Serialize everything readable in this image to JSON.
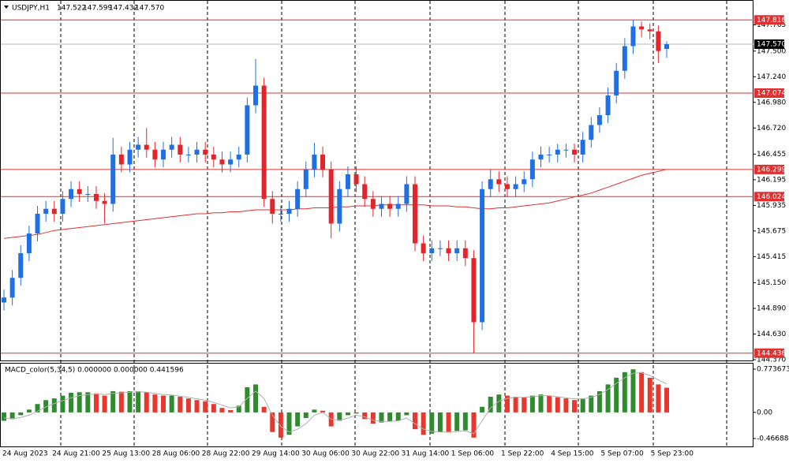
{
  "chart_data": {
    "type": "candlestick",
    "title": "USDJPY,H1",
    "header_values": [
      "147.522",
      "147.599",
      "147.432",
      "147.570"
    ],
    "up_color": "#1f6fe5",
    "down_color": "#e3242b",
    "ma_color": "#e0302f",
    "level_color": "#e0302f",
    "ylim": [
      144.37,
      148.002
    ],
    "yticks": [
      147.765,
      {
        "value": 147.5,
        "label": "147.500"
      },
      {
        "value": 147.24,
        "label": "147.240"
      },
      {
        "value": 146.98,
        "label": "146.980"
      },
      {
        "value": 146.72,
        "label": "146.720"
      },
      146.455,
      146.195,
      145.935,
      145.675,
      145.415,
      {
        "value": 145.15,
        "label": "145.150"
      },
      {
        "value": 144.89,
        "label": "144.890"
      },
      {
        "value": 144.63,
        "label": "144.630"
      },
      {
        "value": 144.37,
        "label": "144.370"
      }
    ],
    "levels": [
      147.816,
      147.074,
      146.299,
      146.024,
      144.436
    ],
    "current": {
      "value": 147.57,
      "label": "147.570"
    },
    "x_labels": [
      "24 Aug 2023",
      "24 Aug 21:00",
      "25 Aug 13:00",
      "28 Aug 06:00",
      "28 Aug 22:00",
      "29 Aug 14:00",
      "30 Aug 06:00",
      "30 Aug 22:00",
      "31 Aug 14:00",
      "1 Sep 06:00",
      "1 Sep 22:00",
      "4 Sep 15:00",
      "5 Sep 07:00",
      "5 Sep 23:00"
    ],
    "open": [
      144.95,
      145.0,
      145.2,
      145.45,
      145.65,
      145.85,
      145.9,
      145.85,
      146.0,
      146.1,
      146.05,
      146.05,
      145.98,
      145.95,
      146.45,
      146.35,
      146.5,
      146.55,
      146.5,
      146.4,
      146.5,
      146.55,
      146.45,
      146.45,
      146.5,
      146.45,
      146.4,
      146.35,
      146.4,
      146.45,
      146.95,
      147.15,
      146.0,
      145.85,
      145.85,
      145.9,
      146.1,
      146.3,
      146.45,
      146.3,
      145.75,
      146.1,
      146.25,
      146.15,
      146.0,
      145.9,
      145.95,
      145.9,
      145.95,
      146.15,
      145.55,
      145.45,
      145.5,
      145.5,
      145.45,
      145.5,
      145.4,
      144.75,
      146.1,
      146.2,
      146.15,
      146.1,
      146.15,
      146.2,
      146.4,
      146.45,
      146.45,
      146.5,
      146.5,
      146.45,
      146.6,
      146.75,
      146.85,
      147.05,
      147.3,
      147.55,
      147.75,
      147.72,
      147.7,
      147.522
    ],
    "high": [
      145.08,
      145.28,
      145.53,
      145.73,
      145.93,
      145.98,
      145.98,
      146.08,
      146.18,
      146.18,
      146.13,
      146.13,
      146.06,
      146.62,
      146.53,
      146.58,
      146.63,
      146.72,
      146.58,
      146.58,
      146.63,
      146.63,
      146.53,
      146.58,
      146.58,
      146.53,
      146.48,
      146.48,
      146.53,
      147.03,
      147.42,
      147.23,
      146.08,
      145.93,
      145.98,
      146.18,
      146.38,
      146.57,
      146.53,
      146.38,
      146.18,
      146.33,
      146.33,
      146.23,
      146.08,
      146.03,
      146.03,
      146.03,
      146.23,
      146.23,
      145.63,
      145.58,
      145.58,
      145.58,
      145.58,
      145.58,
      145.48,
      146.18,
      146.3,
      146.28,
      146.23,
      146.23,
      146.28,
      146.48,
      146.53,
      146.53,
      146.56,
      146.56,
      146.56,
      146.68,
      146.83,
      146.93,
      147.13,
      147.38,
      147.63,
      147.816,
      147.8,
      147.78,
      147.76,
      147.599
    ],
    "low": [
      144.87,
      144.92,
      145.12,
      145.37,
      145.57,
      145.77,
      145.77,
      145.77,
      145.92,
      145.97,
      145.97,
      145.9,
      145.75,
      145.87,
      146.27,
      146.27,
      146.42,
      146.42,
      146.32,
      146.32,
      146.42,
      146.37,
      146.37,
      146.37,
      146.37,
      146.32,
      146.27,
      146.27,
      146.32,
      146.37,
      146.87,
      145.92,
      145.75,
      145.77,
      145.77,
      145.82,
      146.02,
      146.22,
      146.22,
      145.6,
      145.67,
      146.02,
      146.07,
      145.92,
      145.82,
      145.82,
      145.82,
      145.82,
      145.87,
      145.47,
      145.37,
      145.37,
      145.42,
      145.37,
      145.37,
      145.32,
      144.436,
      144.67,
      146.02,
      146.07,
      146.02,
      146.02,
      146.07,
      146.12,
      146.32,
      146.37,
      146.37,
      146.42,
      146.37,
      146.37,
      146.52,
      146.67,
      146.77,
      146.97,
      147.22,
      147.47,
      147.64,
      147.62,
      147.38,
      147.432
    ],
    "close": [
      145.0,
      145.2,
      145.45,
      145.65,
      145.85,
      145.9,
      145.85,
      146.0,
      146.1,
      146.05,
      146.05,
      145.98,
      145.95,
      146.45,
      146.35,
      146.5,
      146.55,
      146.5,
      146.4,
      146.5,
      146.55,
      146.45,
      146.45,
      146.5,
      146.45,
      146.4,
      146.35,
      146.4,
      146.45,
      146.95,
      147.15,
      146.0,
      145.85,
      145.85,
      145.9,
      146.1,
      146.3,
      146.45,
      146.3,
      145.75,
      146.1,
      146.25,
      146.15,
      146.0,
      145.9,
      145.95,
      145.9,
      145.95,
      146.15,
      145.55,
      145.45,
      145.5,
      145.5,
      145.45,
      145.5,
      145.4,
      144.75,
      146.1,
      146.2,
      146.15,
      146.1,
      146.15,
      146.2,
      146.4,
      146.45,
      146.45,
      146.5,
      146.5,
      146.45,
      146.6,
      146.75,
      146.85,
      147.05,
      147.3,
      147.55,
      147.75,
      147.72,
      147.7,
      147.5,
      147.57
    ],
    "ma": [
      145.6,
      145.61,
      145.62,
      145.63,
      145.64,
      145.66,
      145.68,
      145.69,
      145.7,
      145.71,
      145.72,
      145.73,
      145.74,
      145.75,
      145.76,
      145.77,
      145.78,
      145.79,
      145.8,
      145.81,
      145.82,
      145.83,
      145.84,
      145.85,
      145.85,
      145.86,
      145.86,
      145.87,
      145.87,
      145.88,
      145.89,
      145.89,
      145.89,
      145.89,
      145.89,
      145.9,
      145.9,
      145.91,
      145.91,
      145.91,
      145.92,
      145.92,
      145.93,
      145.93,
      145.93,
      145.94,
      145.94,
      145.94,
      145.94,
      145.94,
      145.94,
      145.93,
      145.93,
      145.93,
      145.92,
      145.92,
      145.91,
      145.9,
      145.9,
      145.91,
      145.91,
      145.92,
      145.93,
      145.94,
      145.95,
      145.96,
      145.98,
      146.0,
      146.02,
      146.04,
      146.06,
      146.09,
      146.12,
      146.15,
      146.18,
      146.21,
      146.24,
      146.26,
      146.28,
      146.3
    ],
    "macd": {
      "label": "MACD_color(5,34,5) 0.000000 0.000000 0.441596",
      "up_color": "#2e8b2e",
      "down_color": "#e8372c",
      "signal_color": "#b0b0b0",
      "ylim": [
        -0.594,
        0.858
      ],
      "yticks": [
        0.773673,
        {
          "value": 0,
          "label": "0.00"
        },
        -0.466883
      ],
      "values": [
        -0.15,
        -0.12,
        -0.05,
        0.05,
        0.15,
        0.22,
        0.25,
        0.3,
        0.35,
        0.36,
        0.36,
        0.34,
        0.3,
        0.38,
        0.37,
        0.38,
        0.38,
        0.36,
        0.32,
        0.3,
        0.3,
        0.28,
        0.25,
        0.22,
        0.2,
        0.15,
        0.08,
        0.04,
        0.12,
        0.45,
        0.5,
        0.1,
        -0.35,
        -0.45,
        -0.4,
        -0.25,
        -0.1,
        0.05,
        0.03,
        -0.25,
        -0.15,
        -0.05,
        -0.02,
        -0.12,
        -0.2,
        -0.18,
        -0.16,
        -0.15,
        -0.05,
        -0.3,
        -0.4,
        -0.38,
        -0.35,
        -0.36,
        -0.33,
        -0.32,
        -0.45,
        0.1,
        0.28,
        0.32,
        0.3,
        0.28,
        0.27,
        0.3,
        0.32,
        0.3,
        0.27,
        0.25,
        0.22,
        0.25,
        0.3,
        0.38,
        0.5,
        0.62,
        0.72,
        0.77,
        0.72,
        0.62,
        0.5,
        0.441596
      ],
      "signal": [
        -0.1,
        -0.11,
        -0.09,
        -0.05,
        0.02,
        0.1,
        0.16,
        0.21,
        0.26,
        0.3,
        0.32,
        0.33,
        0.32,
        0.34,
        0.35,
        0.36,
        0.37,
        0.36,
        0.34,
        0.32,
        0.31,
        0.29,
        0.27,
        0.24,
        0.22,
        0.18,
        0.13,
        0.08,
        0.1,
        0.25,
        0.38,
        0.25,
        -0.05,
        -0.25,
        -0.35,
        -0.3,
        -0.2,
        -0.05,
        0.0,
        -0.12,
        -0.14,
        -0.1,
        -0.05,
        -0.08,
        -0.14,
        -0.16,
        -0.16,
        -0.15,
        -0.1,
        -0.2,
        -0.3,
        -0.34,
        -0.35,
        -0.35,
        -0.34,
        -0.33,
        -0.38,
        -0.15,
        0.08,
        0.2,
        0.25,
        0.27,
        0.27,
        0.28,
        0.3,
        0.3,
        0.28,
        0.26,
        0.24,
        0.24,
        0.27,
        0.32,
        0.41,
        0.52,
        0.62,
        0.7,
        0.71,
        0.66,
        0.58,
        0.51
      ]
    }
  }
}
